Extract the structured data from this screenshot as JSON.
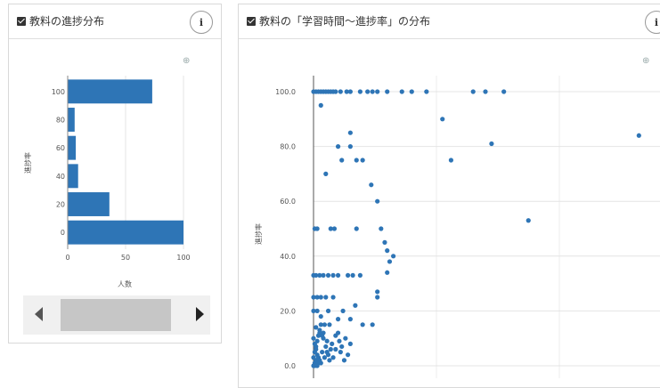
{
  "left_panel": {
    "title": "教料の進捗分布",
    "info": "i",
    "export_icon": "export-icon"
  },
  "right_panel": {
    "title": "教料の「学習時間～進捗率」の分布",
    "info": "i",
    "export_icon": "export-icon"
  },
  "chart_data": [
    {
      "type": "bar",
      "orientation": "horizontal",
      "categories": [
        "0",
        "20",
        "40",
        "60",
        "80",
        "100"
      ],
      "values": [
        100,
        36,
        9,
        7,
        6,
        73
      ],
      "xlabel": "人数",
      "ylabel": "進捗率",
      "xlim": [
        0,
        100
      ],
      "xticks": [
        "0",
        "50",
        "100"
      ],
      "grid": true,
      "color": "#2e75b6"
    },
    {
      "type": "scatter",
      "ylabel": "進捗率",
      "ylim": [
        0,
        100
      ],
      "yticks": [
        "0.0",
        "20.0",
        "40.0",
        "60.0",
        "80.0",
        "100.0"
      ],
      "grid": true,
      "color": "#2e75b6",
      "xlim": [
        0,
        280
      ],
      "points": [
        [
          0,
          100
        ],
        [
          2,
          100
        ],
        [
          4,
          100
        ],
        [
          6,
          100
        ],
        [
          8,
          100
        ],
        [
          10,
          100
        ],
        [
          12,
          100
        ],
        [
          14,
          100
        ],
        [
          16,
          100
        ],
        [
          18,
          100
        ],
        [
          22,
          100
        ],
        [
          27,
          100
        ],
        [
          30,
          100
        ],
        [
          38,
          100
        ],
        [
          44,
          100
        ],
        [
          48,
          100
        ],
        [
          52,
          100
        ],
        [
          60,
          100
        ],
        [
          72,
          100
        ],
        [
          80,
          100
        ],
        [
          92,
          100
        ],
        [
          130,
          100
        ],
        [
          140,
          100
        ],
        [
          155,
          100
        ],
        [
          6,
          95
        ],
        [
          30,
          85
        ],
        [
          105,
          90
        ],
        [
          145,
          81
        ],
        [
          112,
          75
        ],
        [
          265,
          84
        ],
        [
          20,
          80
        ],
        [
          35,
          75
        ],
        [
          30,
          80
        ],
        [
          23,
          75
        ],
        [
          40,
          75
        ],
        [
          10,
          70
        ],
        [
          47,
          66
        ],
        [
          52,
          60
        ],
        [
          175,
          53
        ],
        [
          1,
          50
        ],
        [
          3,
          50
        ],
        [
          14,
          50
        ],
        [
          17,
          50
        ],
        [
          35,
          50
        ],
        [
          55,
          50
        ],
        [
          58,
          45
        ],
        [
          60,
          42
        ],
        [
          65,
          40
        ],
        [
          62,
          38
        ],
        [
          60,
          34
        ],
        [
          0,
          33
        ],
        [
          2,
          33
        ],
        [
          5,
          33
        ],
        [
          8,
          33
        ],
        [
          12,
          33
        ],
        [
          16,
          33
        ],
        [
          20,
          33
        ],
        [
          28,
          33
        ],
        [
          32,
          33
        ],
        [
          38,
          33
        ],
        [
          52,
          27
        ],
        [
          52,
          25
        ],
        [
          0,
          25
        ],
        [
          3,
          25
        ],
        [
          6,
          25
        ],
        [
          10,
          25
        ],
        [
          12,
          20
        ],
        [
          16,
          25
        ],
        [
          20,
          17
        ],
        [
          24,
          20
        ],
        [
          30,
          17
        ],
        [
          40,
          15
        ],
        [
          48,
          15
        ],
        [
          34,
          22
        ],
        [
          0,
          20
        ],
        [
          3,
          20
        ],
        [
          6,
          18
        ],
        [
          9,
          15
        ],
        [
          13,
          15
        ],
        [
          2,
          14
        ],
        [
          5,
          12
        ],
        [
          8,
          10
        ],
        [
          11,
          9
        ],
        [
          15,
          8
        ],
        [
          18,
          6
        ],
        [
          22,
          5
        ],
        [
          26,
          10
        ],
        [
          30,
          8
        ],
        [
          0,
          10
        ],
        [
          1,
          8
        ],
        [
          2,
          6
        ],
        [
          3,
          4
        ],
        [
          4,
          3
        ],
        [
          5,
          2
        ],
        [
          6,
          1
        ],
        [
          1,
          1
        ],
        [
          2,
          2
        ],
        [
          0,
          0
        ],
        [
          1,
          0
        ],
        [
          3,
          0
        ],
        [
          4,
          1
        ],
        [
          7,
          5
        ],
        [
          9,
          3
        ],
        [
          12,
          4
        ],
        [
          14,
          6
        ],
        [
          20,
          12
        ],
        [
          25,
          2
        ],
        [
          28,
          4
        ],
        [
          0,
          3
        ],
        [
          1,
          5
        ],
        [
          2,
          7
        ],
        [
          3,
          9
        ],
        [
          4,
          11
        ],
        [
          5,
          13
        ],
        [
          6,
          15
        ],
        [
          7,
          11
        ],
        [
          8,
          12
        ],
        [
          10,
          7
        ],
        [
          11,
          5
        ],
        [
          13,
          2
        ],
        [
          16,
          3
        ],
        [
          18,
          11
        ],
        [
          21,
          9
        ],
        [
          23,
          7
        ]
      ]
    }
  ]
}
